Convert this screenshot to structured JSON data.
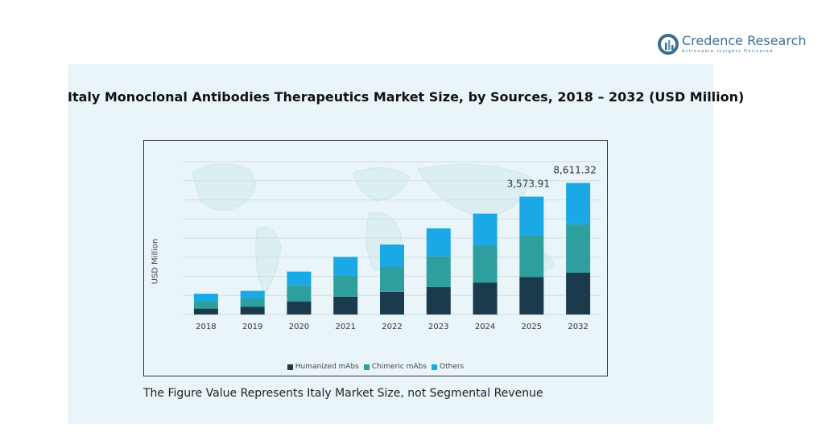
{
  "brand": {
    "name": "Credence Research",
    "tagline": "Actionable Insights Delivered",
    "logo_icon": "credence-logo-icon"
  },
  "footnote": "The Figure Value Represents Italy Market Size, not Segmental Revenue",
  "chart_data": {
    "type": "bar",
    "stacked": true,
    "title": "Italy Monoclonal Antibodies Therapeutics Market Size, by Sources, 2018 – 2032 (USD Million)",
    "xlabel": "",
    "ylabel": "USD Million",
    "categories": [
      "2018",
      "2019",
      "2020",
      "2021",
      "2022",
      "2023",
      "2024",
      "2025",
      "2032"
    ],
    "series": [
      {
        "name": "Humanized mAbs",
        "color": "#1b3a4b",
        "values": [
          390,
          500,
          860,
          1170,
          1480,
          1800,
          2080,
          2450,
          2740
        ]
      },
      {
        "name": "Chimeric mAbs",
        "color": "#2e9e9e",
        "values": [
          500,
          530,
          1070,
          1380,
          1650,
          2000,
          2420,
          2730,
          3160
        ]
      },
      {
        "name": "Others",
        "color": "#1aa9e6",
        "values": [
          470,
          520,
          880,
          1220,
          1450,
          1840,
          2100,
          2530,
          2710
        ]
      }
    ],
    "data_labels": [
      {
        "category": "2025",
        "text": "3,573.91"
      },
      {
        "category": "2032",
        "text": "8,611.32"
      }
    ],
    "ylim": [
      0,
      10000
    ],
    "grid": true,
    "legend_position": "bottom"
  }
}
